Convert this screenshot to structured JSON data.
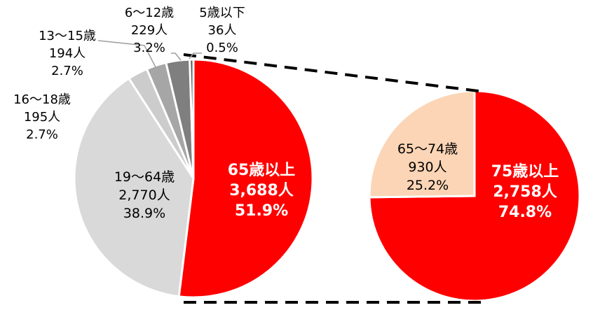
{
  "chart_data": [
    {
      "type": "pie",
      "slices": [
        {
          "label": "65歳以上",
          "count": "3,688人",
          "percent": "51.9%",
          "value": 51.9,
          "color": "#ff0000",
          "text_color": "#ffffff",
          "bold": true
        },
        {
          "label": "19〜64歳",
          "count": "2,770人",
          "percent": "38.9%",
          "value": 38.9,
          "color": "#d9d9d9",
          "text_color": "#000000",
          "bold": false
        },
        {
          "label": "16〜18歳",
          "count": "195人",
          "percent": "2.7%",
          "value": 2.7,
          "color": "#cccccc",
          "text_color": "#000000",
          "bold": false
        },
        {
          "label": "13〜15歳",
          "count": "194人",
          "percent": "2.7%",
          "value": 2.7,
          "color": "#a6a6a6",
          "text_color": "#000000",
          "bold": false
        },
        {
          "label": "6〜12歳",
          "count": "229人",
          "percent": "3.2%",
          "value": 3.2,
          "color": "#7f7f7f",
          "text_color": "#000000",
          "bold": false
        },
        {
          "label": "5歳以下",
          "count": "36人",
          "percent": "0.5%",
          "value": 0.5,
          "color": "#595959",
          "text_color": "#000000",
          "bold": false
        }
      ]
    },
    {
      "type": "pie",
      "slices": [
        {
          "label": "75歳以上",
          "count": "2,758人",
          "percent": "74.8%",
          "value": 74.8,
          "color": "#ff0000",
          "text_color": "#ffffff",
          "bold": true
        },
        {
          "label": "65〜74歳",
          "count": "930人",
          "percent": "25.2%",
          "value": 25.2,
          "color": "#fbd5b5",
          "text_color": "#000000",
          "bold": false
        }
      ]
    }
  ]
}
